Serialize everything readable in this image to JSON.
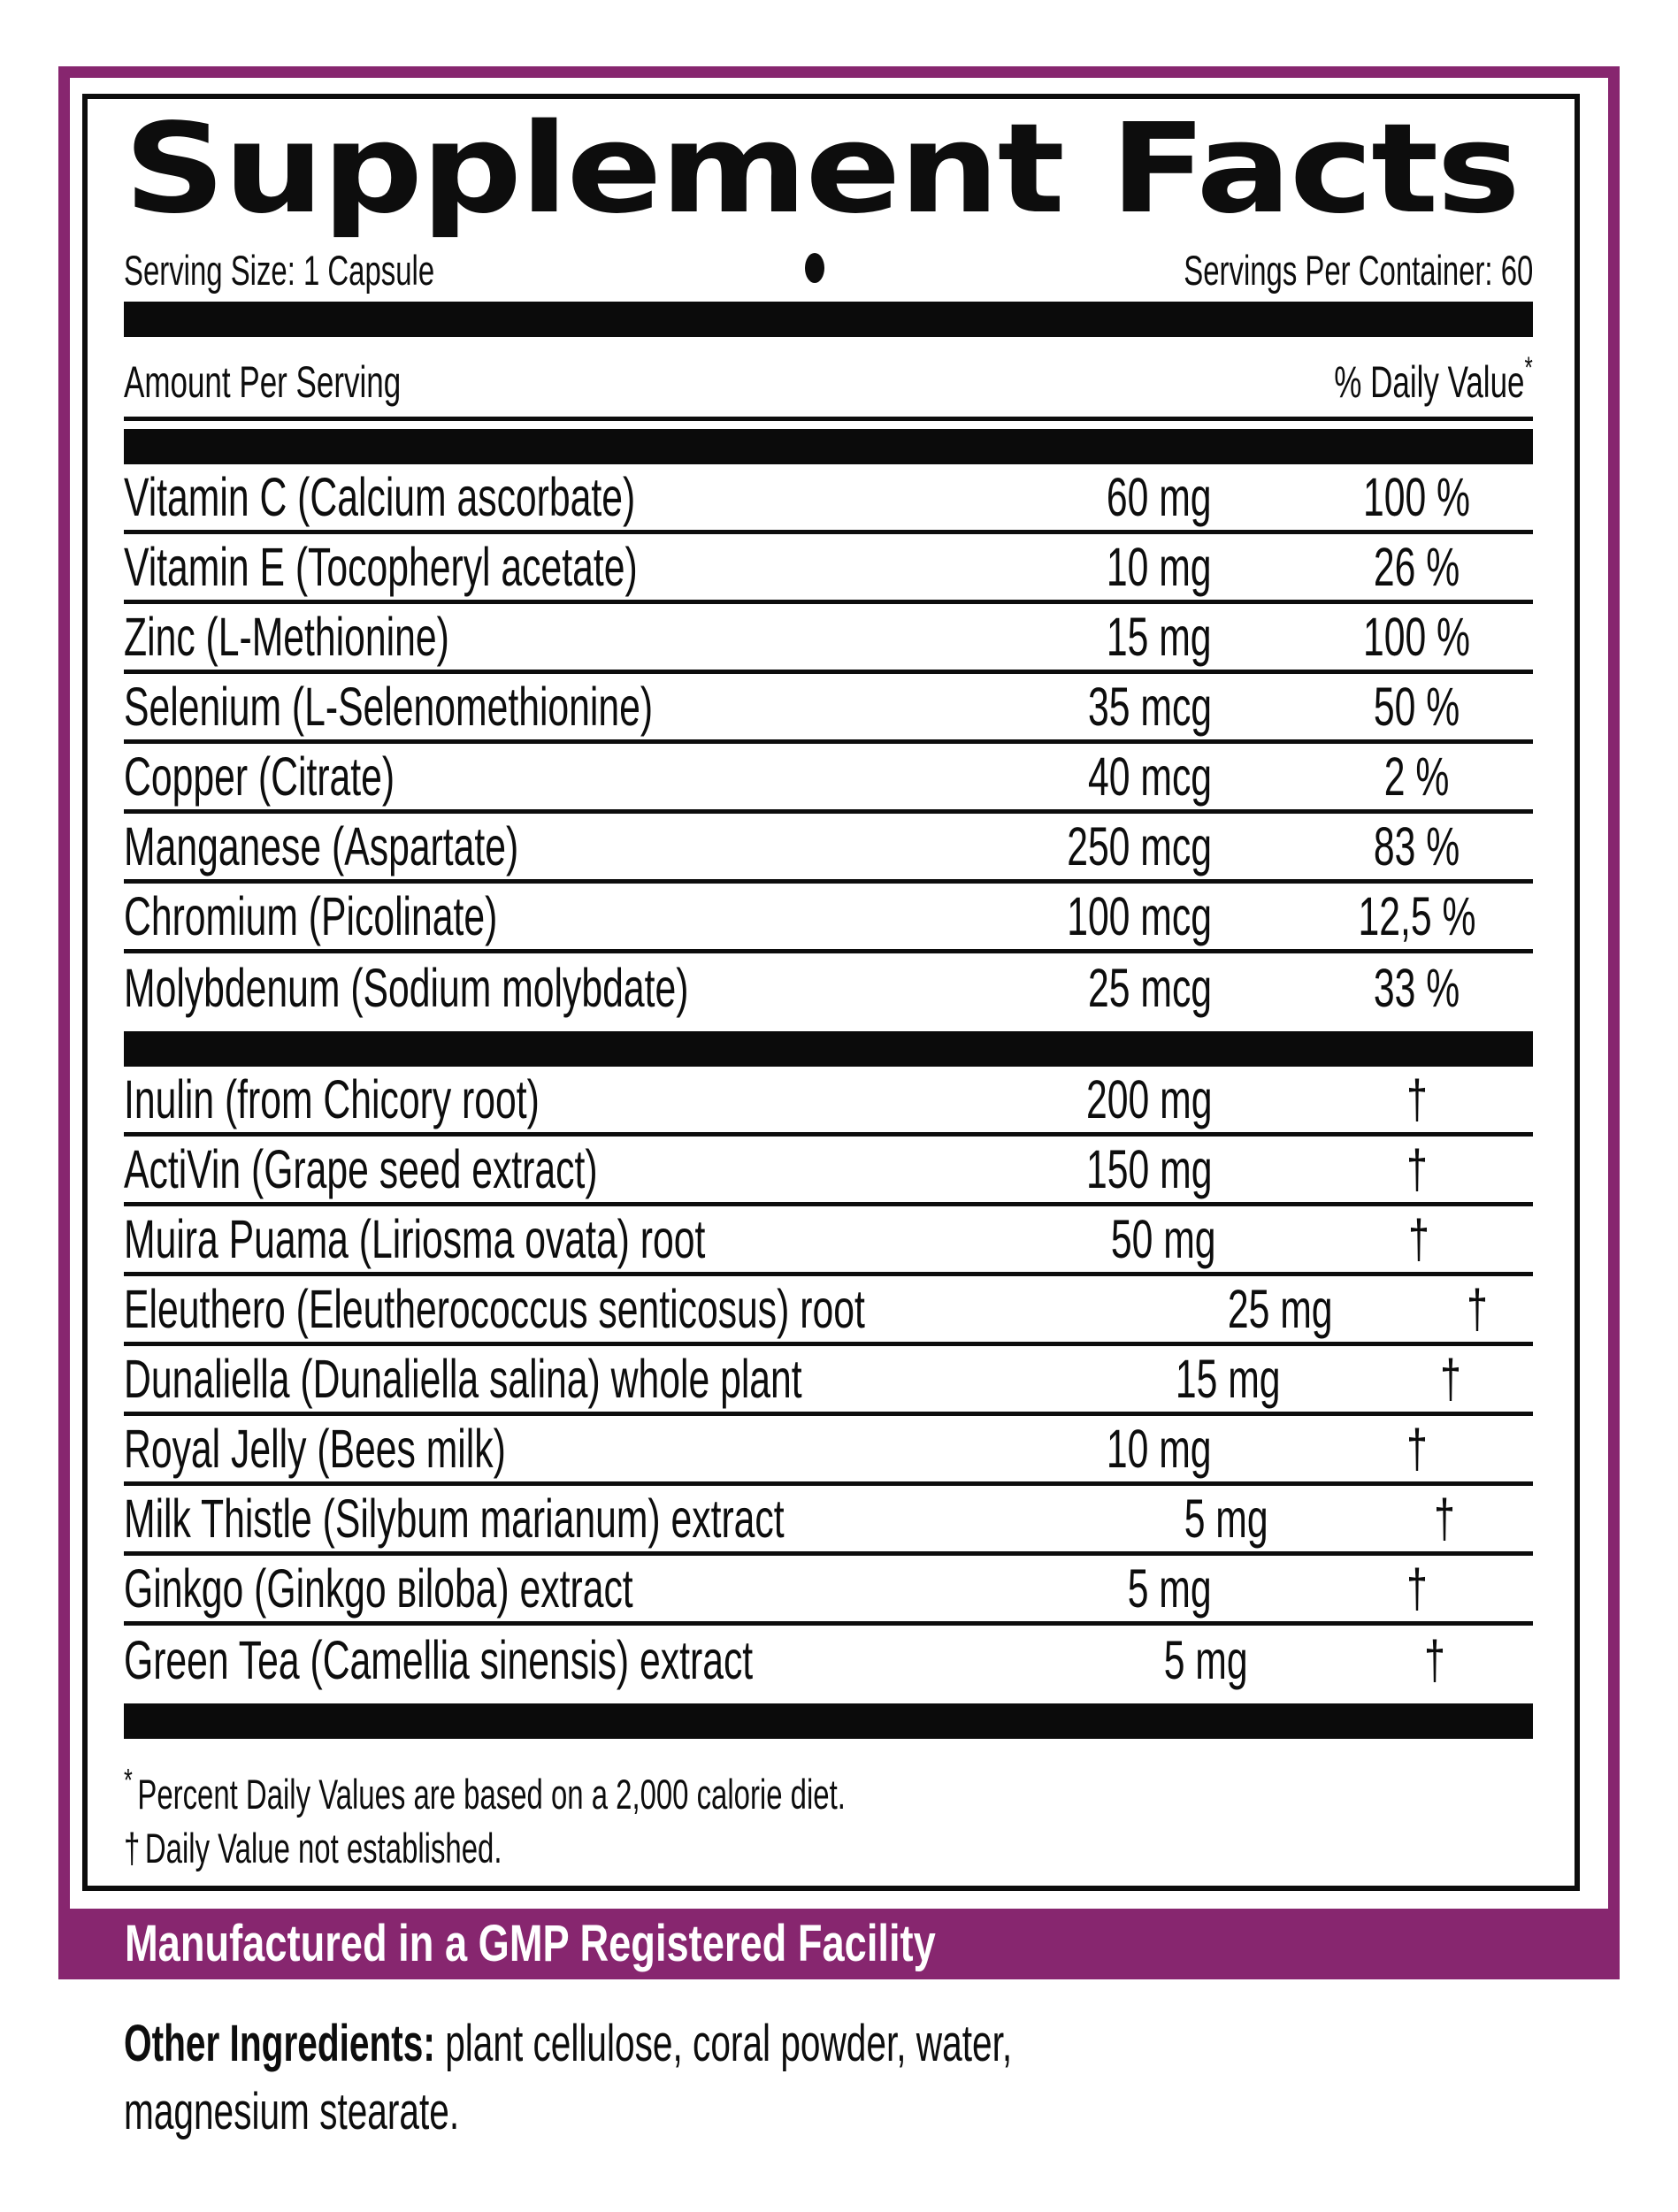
{
  "label": {
    "title": "Supplement Facts",
    "serving_size": "Serving Size: 1 Capsule",
    "bullet": "•",
    "servings_per_container": "Servings Per Container: 60",
    "header": {
      "amount": "Amount Per Serving",
      "daily_value": "% Daily Value",
      "asterisk": "*"
    },
    "nutrients": [
      {
        "name": "Vitamin C (Calcium ascorbate)",
        "amount": "60 mg",
        "dv": "100 %"
      },
      {
        "name": "Vitamin E (Tocopheryl acetate)",
        "amount": "10 mg",
        "dv": "26 %"
      },
      {
        "name": "Zinc (L-Methionine)",
        "amount": "15 mg",
        "dv": "100 %"
      },
      {
        "name": "Selenium (L-Selenomethionine)",
        "amount": "35 mcg",
        "dv": "50 %"
      },
      {
        "name": "Copper (Citrate)",
        "amount": "40 mcg",
        "dv": "2 %"
      },
      {
        "name": "Manganese (Aspartate)",
        "amount": "250 mcg",
        "dv": "83 %"
      },
      {
        "name": "Chromium (Picolinate)",
        "amount": "100 mcg",
        "dv": "12,5 %"
      },
      {
        "name": "Molybdenum (Sodium molybdate)",
        "amount": "25 mcg",
        "dv": "33 %"
      }
    ],
    "botanicals": [
      {
        "name": "Inulin (from Chicory root)",
        "amount": "200 mg",
        "dv": "†"
      },
      {
        "name": "ActiVin (Grape seed extract)",
        "amount": "150 mg",
        "dv": "†"
      },
      {
        "name": "Muira Puama (Liriosma ovata) root",
        "amount": "50 mg",
        "dv": "†"
      },
      {
        "name": "Eleuthero (Eleutherococcus senticosus) root",
        "amount": "25 mg",
        "dv": "†"
      },
      {
        "name": "Dunaliella (Dunaliella salina) whole plant",
        "amount": "15 mg",
        "dv": "†"
      },
      {
        "name": "Royal Jelly (Bees milk)",
        "amount": "10 mg",
        "dv": "†"
      },
      {
        "name": "Milk Thistle (Silybum marianum) extract",
        "amount": "5 mg",
        "dv": "†"
      },
      {
        "name": "Ginkgo (Ginkgo вiloba) extract",
        "amount": "5 mg",
        "dv": "†"
      },
      {
        "name": "Green Tea (Camellia sinensis) extract",
        "amount": "5 mg",
        "dv": "†"
      }
    ],
    "footnotes": {
      "mark1": "*",
      "text1": "Percent Daily Values are based on a 2,000 calorie diet.",
      "mark2": "†",
      "text2": "Daily Value not established."
    },
    "banner": "Manufactured in a GMP Registered Facility",
    "other_ingredients": {
      "label": "Other Ingredients:",
      "line1": "plant cellulose, coral powder, water,",
      "line2": "magnesium stearate."
    },
    "colors": {
      "purple_accent": "#87266F",
      "ink": "#0d0d0d",
      "background": "#ffffff"
    }
  }
}
